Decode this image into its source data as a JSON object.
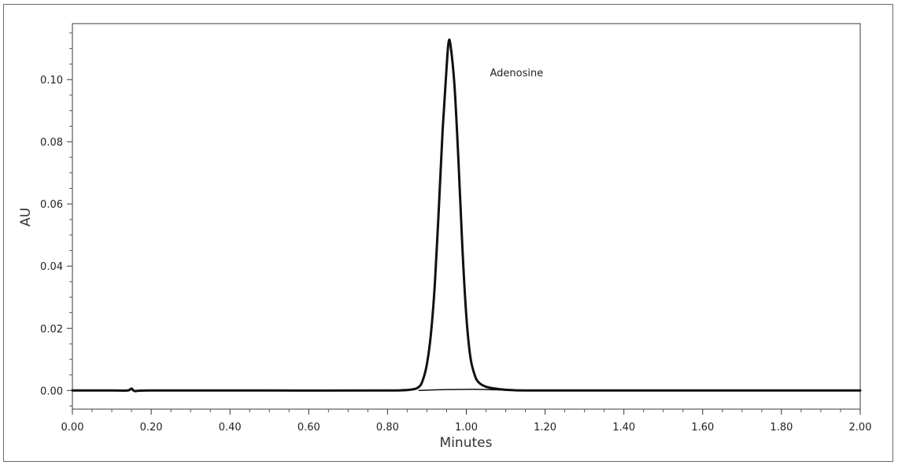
{
  "chart_data": {
    "type": "line",
    "title": "",
    "xlabel": "Minutes",
    "ylabel": "AU",
    "xlim": [
      0.0,
      2.0
    ],
    "ylim": [
      -0.006,
      0.118
    ],
    "x_ticks": [
      "0.00",
      "0.20",
      "0.40",
      "0.60",
      "0.80",
      "1.00",
      "1.20",
      "1.40",
      "1.60",
      "1.80",
      "2.00"
    ],
    "y_ticks": [
      "0.00",
      "0.02",
      "0.04",
      "0.06",
      "0.08",
      "0.10"
    ],
    "grid": false,
    "annotations": [
      {
        "text": "Adenosine",
        "x": 1.06,
        "y": 0.101
      }
    ],
    "series": [
      {
        "x": [
          0.0,
          0.1,
          0.14,
          0.15,
          0.16,
          0.2,
          0.5,
          0.8,
          0.86,
          0.88,
          0.89,
          0.9,
          0.91,
          0.92,
          0.93,
          0.94,
          0.95,
          0.955,
          0.96,
          0.97,
          0.98,
          0.99,
          1.0,
          1.01,
          1.02,
          1.03,
          1.05,
          1.08,
          1.12,
          1.2,
          1.5,
          2.0
        ],
        "y": [
          0.0,
          0.0,
          0.0,
          0.0006,
          -0.0002,
          0.0,
          0.0,
          0.0,
          0.0003,
          0.0012,
          0.0035,
          0.0085,
          0.018,
          0.034,
          0.058,
          0.084,
          0.104,
          0.112,
          0.111,
          0.098,
          0.074,
          0.046,
          0.024,
          0.011,
          0.0055,
          0.0028,
          0.0012,
          0.0005,
          0.0001,
          0.0,
          0.0,
          0.0
        ]
      },
      {
        "x": [
          0.88,
          0.92,
          0.96,
          1.02,
          1.08,
          1.11
        ],
        "y": [
          0.0,
          0.0002,
          0.0003,
          0.0004,
          0.0002,
          0.0
        ]
      }
    ]
  }
}
